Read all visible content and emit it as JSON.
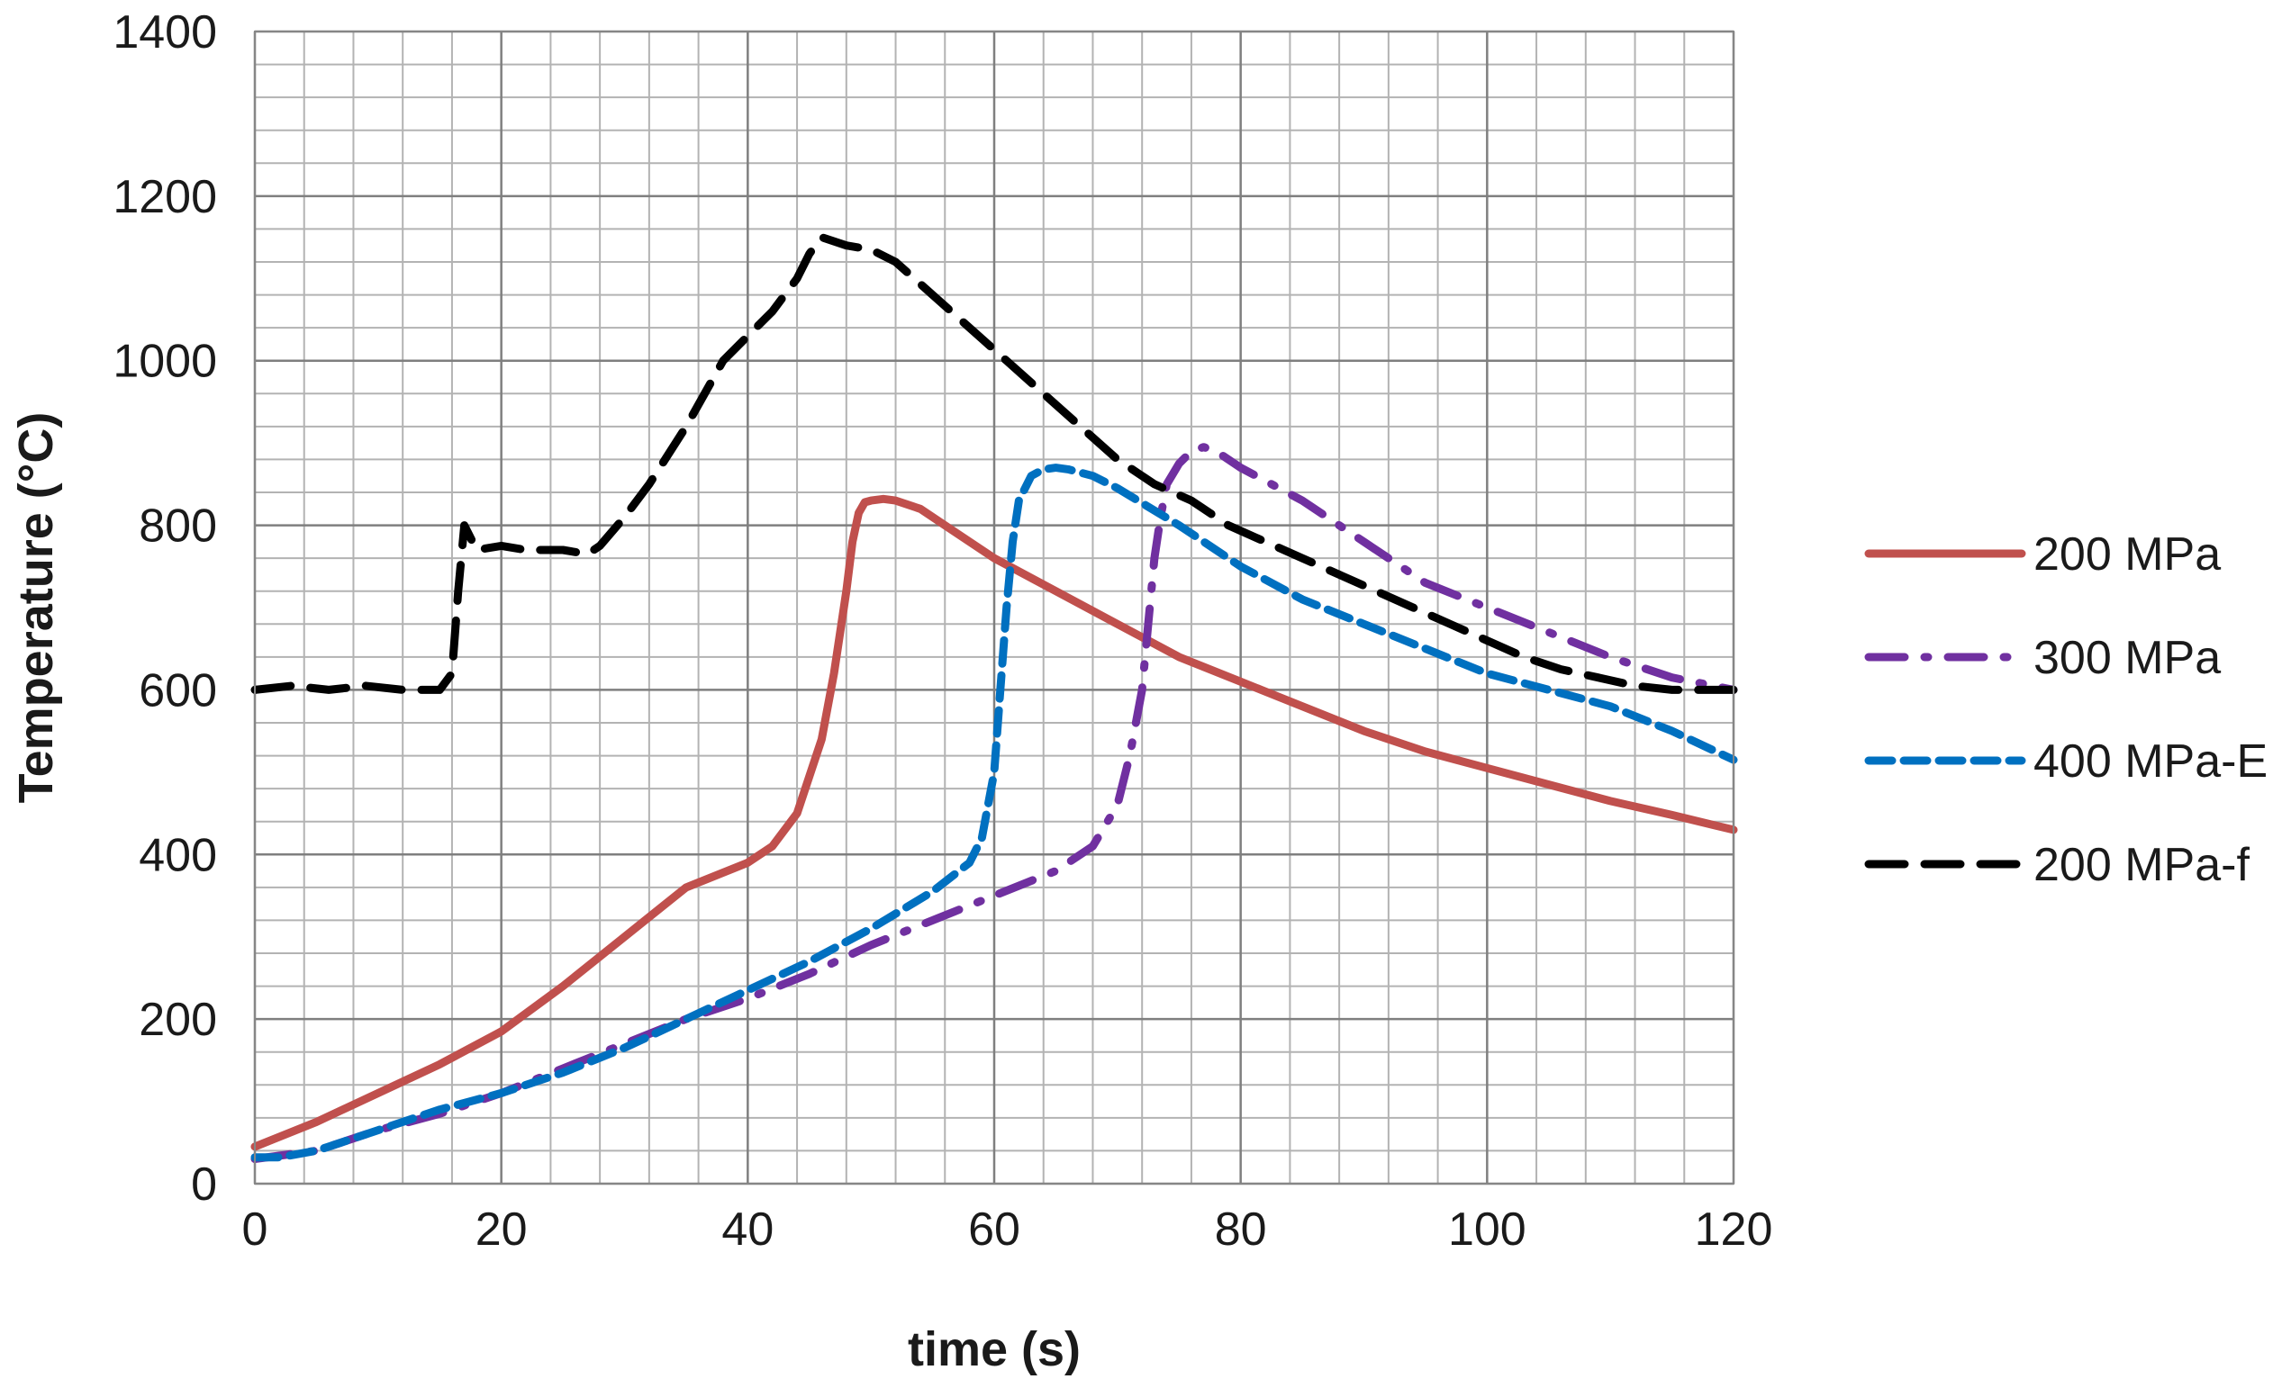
{
  "chart_data": {
    "type": "line",
    "title": "",
    "xlabel": "time (s)",
    "ylabel": "Temperature (°C)",
    "xlim": [
      0,
      120
    ],
    "ylim": [
      0,
      1400
    ],
    "xticks": [
      0,
      20,
      40,
      60,
      80,
      100,
      120
    ],
    "yticks": [
      0,
      200,
      400,
      600,
      800,
      1000,
      1200,
      1400
    ],
    "x_minor_step": 4,
    "y_minor_step": 40,
    "grid": true,
    "legend_position": "right",
    "series": [
      {
        "name": "200 MPa",
        "color": "#c0504d",
        "style": "solid",
        "x": [
          0,
          5,
          10,
          15,
          20,
          25,
          30,
          35,
          40,
          42,
          44,
          46,
          47,
          48,
          48.5,
          49,
          49.5,
          50,
          51,
          52,
          54,
          56,
          60,
          65,
          70,
          75,
          80,
          85,
          90,
          95,
          100,
          105,
          110,
          115,
          120
        ],
        "y": [
          45,
          75,
          110,
          145,
          185,
          240,
          300,
          360,
          390,
          410,
          450,
          540,
          620,
          720,
          780,
          815,
          828,
          830,
          832,
          830,
          820,
          800,
          760,
          720,
          680,
          640,
          610,
          580,
          550,
          525,
          505,
          485,
          465,
          448,
          430
        ]
      },
      {
        "name": "300 MPa",
        "color": "#7030a0",
        "style": "dash-dot",
        "x": [
          0,
          5,
          10,
          15,
          20,
          25,
          30,
          35,
          40,
          45,
          50,
          55,
          60,
          65,
          68,
          70,
          71,
          72,
          72.5,
          73,
          73.5,
          74,
          75,
          76,
          77,
          78,
          80,
          85,
          90,
          95,
          100,
          105,
          110,
          115,
          120
        ],
        "y": [
          30,
          40,
          65,
          85,
          110,
          140,
          170,
          200,
          225,
          255,
          290,
          320,
          350,
          380,
          410,
          460,
          520,
          600,
          680,
          760,
          810,
          850,
          875,
          890,
          895,
          890,
          870,
          830,
          780,
          730,
          700,
          670,
          640,
          615,
          600
        ]
      },
      {
        "name": "400 MPa-E",
        "color": "#0070c0",
        "style": "dashed",
        "x": [
          0,
          2,
          5,
          10,
          15,
          20,
          25,
          30,
          35,
          40,
          45,
          50,
          55,
          58,
          59,
          60,
          60.5,
          61,
          61.5,
          62,
          63,
          64,
          65,
          66,
          68,
          70,
          75,
          80,
          85,
          90,
          95,
          100,
          105,
          110,
          115,
          120
        ],
        "y": [
          32,
          32,
          40,
          65,
          90,
          110,
          135,
          165,
          200,
          235,
          270,
          310,
          355,
          390,
          420,
          500,
          600,
          700,
          780,
          830,
          860,
          868,
          870,
          868,
          860,
          845,
          800,
          750,
          710,
          680,
          650,
          620,
          600,
          580,
          550,
          515
        ]
      },
      {
        "name": "200 MPa-f",
        "color": "#000000",
        "style": "long-dash",
        "x": [
          0,
          3,
          6,
          9,
          12,
          15,
          16,
          16.5,
          17,
          18,
          20,
          22,
          25,
          27,
          28,
          30,
          32,
          35,
          38,
          40,
          42,
          44,
          45,
          46,
          48,
          50,
          52,
          55,
          58,
          61,
          64,
          67,
          70,
          73,
          76,
          79,
          82,
          85,
          88,
          91,
          94,
          97,
          100,
          103,
          106,
          109,
          112,
          115,
          118,
          120
        ],
        "y": [
          600,
          605,
          600,
          605,
          600,
          600,
          620,
          720,
          800,
          770,
          775,
          770,
          770,
          765,
          775,
          810,
          850,
          920,
          1000,
          1030,
          1060,
          1100,
          1130,
          1150,
          1140,
          1135,
          1120,
          1080,
          1040,
          1000,
          960,
          920,
          880,
          850,
          830,
          800,
          780,
          760,
          740,
          720,
          700,
          680,
          660,
          640,
          625,
          615,
          605,
          600,
          600,
          600
        ]
      }
    ]
  }
}
